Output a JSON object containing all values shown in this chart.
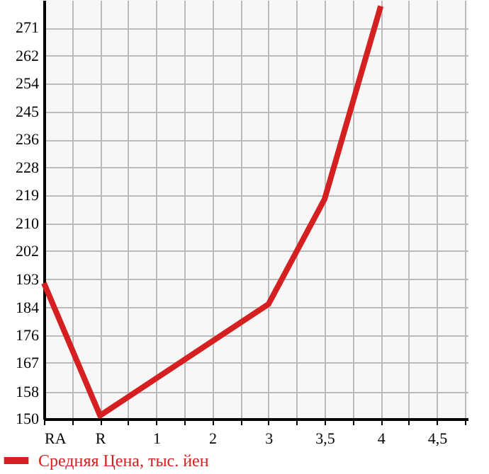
{
  "chart_data": {
    "type": "line",
    "categories": [
      "RA",
      "R",
      "1",
      "2",
      "3",
      "3,5",
      "4",
      "4,5"
    ],
    "series": [
      {
        "name": "Средняя Цена, тыс. йен",
        "color": "#d42020",
        "values": [
          192,
          151,
          null,
          null,
          185.5,
          218,
          277.7,
          null
        ]
      }
    ],
    "ylim": [
      150,
      279.6
    ],
    "yticks": [
      {
        "value": 150,
        "label": "150"
      },
      {
        "value": 158.4,
        "label": "158"
      },
      {
        "value": 167.3,
        "label": "167"
      },
      {
        "value": 175.9,
        "label": "176"
      },
      {
        "value": 184.4,
        "label": "184"
      },
      {
        "value": 193.2,
        "label": "193"
      },
      {
        "value": 201.9,
        "label": "202"
      },
      {
        "value": 210.4,
        "label": "210"
      },
      {
        "value": 219.1,
        "label": "219"
      },
      {
        "value": 227.8,
        "label": "228"
      },
      {
        "value": 236.4,
        "label": "236"
      },
      {
        "value": 245.1,
        "label": "245"
      },
      {
        "value": 253.7,
        "label": "254"
      },
      {
        "value": 262.4,
        "label": "262"
      },
      {
        "value": 271.0,
        "label": "271"
      }
    ],
    "grid": true,
    "legend": "bottom left",
    "marker": "none",
    "line_style": "solid"
  }
}
